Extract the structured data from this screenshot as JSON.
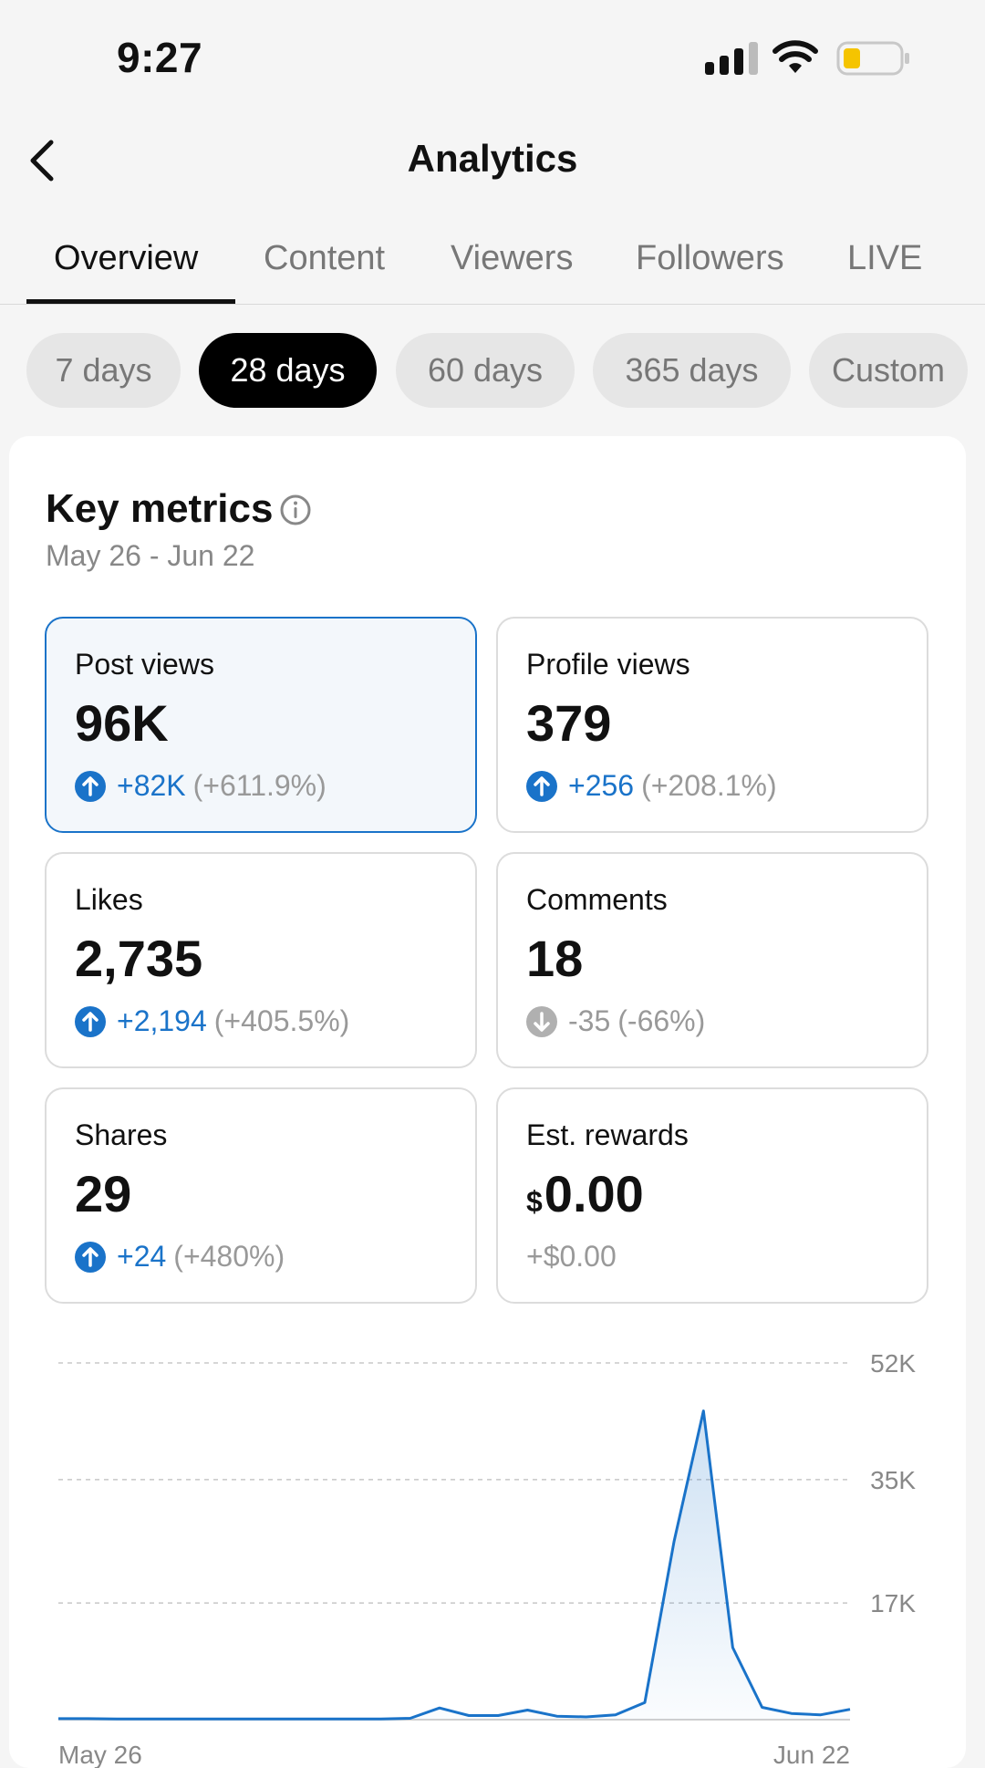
{
  "status_bar": {
    "time": "9:27"
  },
  "nav": {
    "title": "Analytics",
    "back_icon": "chevron-left-icon"
  },
  "tabs": [
    {
      "label": "Overview",
      "active": true
    },
    {
      "label": "Content",
      "active": false
    },
    {
      "label": "Viewers",
      "active": false
    },
    {
      "label": "Followers",
      "active": false
    },
    {
      "label": "LIVE",
      "active": false
    }
  ],
  "ranges": [
    {
      "label": "7 days",
      "active": false
    },
    {
      "label": "28 days",
      "active": true
    },
    {
      "label": "60 days",
      "active": false
    },
    {
      "label": "365 days",
      "active": false
    },
    {
      "label": "Custom",
      "active": false
    }
  ],
  "key_metrics": {
    "title": "Key metrics",
    "range": "May 26 - Jun 22",
    "items": [
      {
        "label": "Post views",
        "value": "96K",
        "delta": "+82K",
        "pct": "(+611.9%)",
        "trend": "up",
        "selected": true
      },
      {
        "label": "Profile views",
        "value": "379",
        "delta": "+256",
        "pct": "(+208.1%)",
        "trend": "up",
        "selected": false
      },
      {
        "label": "Likes",
        "value": "2,735",
        "delta": "+2,194",
        "pct": "(+405.5%)",
        "trend": "up",
        "selected": false
      },
      {
        "label": "Comments",
        "value": "18",
        "delta": "-35",
        "pct": "(-66%)",
        "trend": "down",
        "selected": false
      },
      {
        "label": "Shares",
        "value": "29",
        "delta": "+24",
        "pct": "(+480%)",
        "trend": "up",
        "selected": false
      },
      {
        "label": "Est. rewards",
        "currency": "$",
        "value": "0.00",
        "delta": "+$0.00",
        "trend": "none",
        "selected": false
      }
    ]
  },
  "colors": {
    "accent": "#1a73c9",
    "muted": "#999999",
    "border": "#dcdcdc"
  },
  "chart_data": {
    "type": "area",
    "y_ticks": [
      "52K",
      "35K",
      "17K"
    ],
    "y_tick_values": [
      52000,
      35000,
      17000
    ],
    "ylim": [
      0,
      52000
    ],
    "x_labels": [
      "May 26",
      "Jun 22"
    ],
    "grid": true,
    "series": [
      {
        "values": [
          150,
          150,
          100,
          100,
          100,
          100,
          100,
          100,
          100,
          100,
          100,
          100,
          200,
          1700,
          600,
          600,
          1400,
          500,
          400,
          700,
          2500,
          26000,
          45000,
          10500,
          1800,
          900,
          700,
          1500
        ]
      }
    ]
  }
}
